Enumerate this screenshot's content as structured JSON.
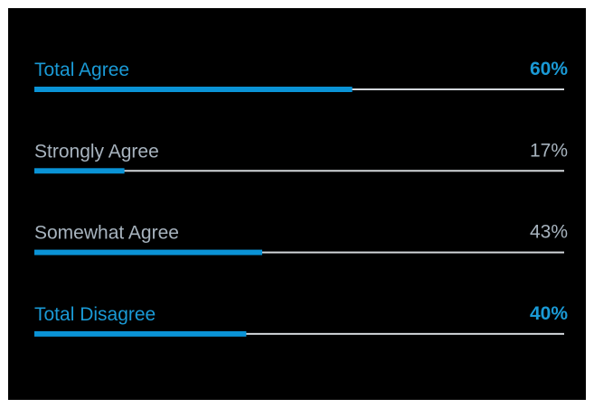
{
  "chart_data": {
    "type": "bar",
    "categories": [
      "Total Agree",
      "Strongly Agree",
      "Somewhat Agree",
      "Total Disagree"
    ],
    "values": [
      60,
      17,
      43,
      40
    ],
    "value_labels": [
      "60%",
      "17%",
      "43%",
      "40%"
    ],
    "color": "#0a93d6",
    "track_color": "#d3d7db",
    "label_colors": [
      "#1a9ad6",
      "#a7b3be",
      "#a7b3be",
      "#1a9ad6"
    ],
    "bold": [
      true,
      false,
      false,
      true
    ],
    "xlim": [
      0,
      100
    ]
  }
}
